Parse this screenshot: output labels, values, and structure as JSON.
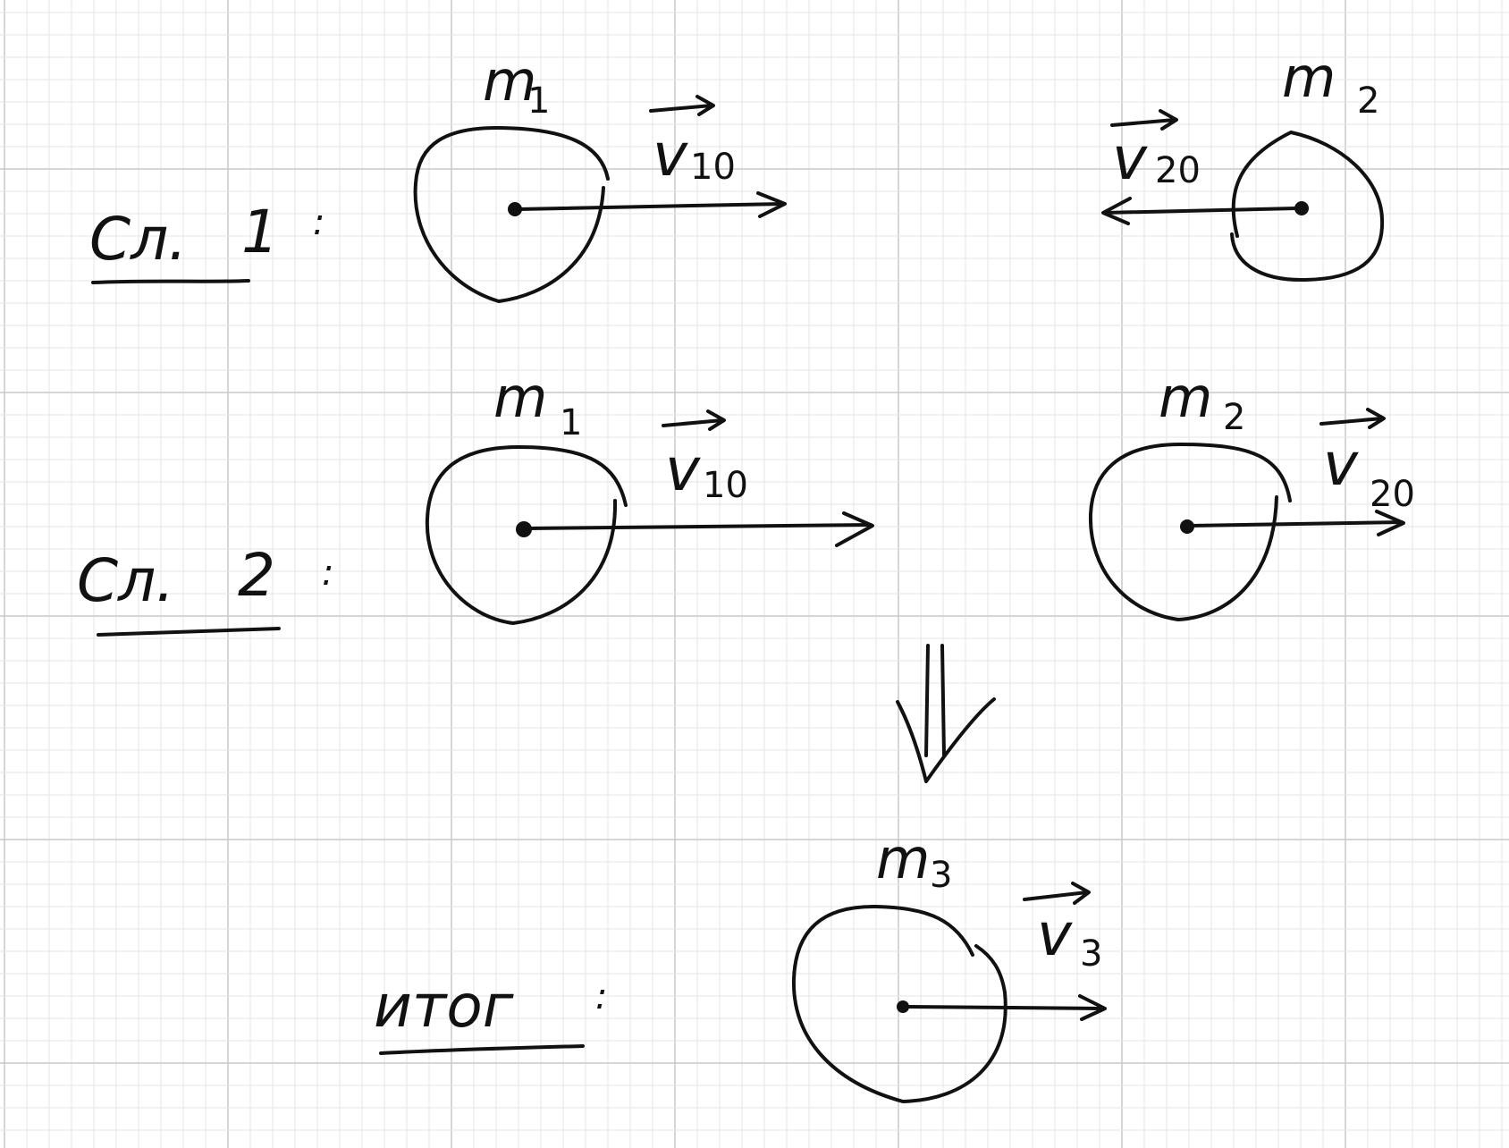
{
  "colors": {
    "paper": "#ffffff",
    "grid_fine": "#e6e6e6",
    "grid_major": "#c9c9c9",
    "ink": "#111111"
  },
  "cases": [
    {
      "label": "Сл.",
      "number": "1",
      "colon": ":",
      "bodies": [
        {
          "mass_symbol": "m",
          "mass_index": "1",
          "velocity_symbol": "v",
          "velocity_index": "10",
          "direction": "right"
        },
        {
          "mass_symbol": "m",
          "mass_index": "2",
          "velocity_symbol": "v",
          "velocity_index": "20",
          "direction": "left"
        }
      ]
    },
    {
      "label": "Сл.",
      "number": "2",
      "colon": ":",
      "bodies": [
        {
          "mass_symbol": "m",
          "mass_index": "1",
          "velocity_symbol": "v",
          "velocity_index": "10",
          "direction": "right"
        },
        {
          "mass_symbol": "m",
          "mass_index": "2",
          "velocity_symbol": "v",
          "velocity_index": "20",
          "direction": "right"
        }
      ]
    }
  ],
  "implication_icon": "double-arrow-down-icon",
  "result": {
    "label": "итог",
    "colon": ":",
    "body": {
      "mass_symbol": "m",
      "mass_index": "3",
      "velocity_symbol": "v",
      "velocity_index": "3",
      "direction": "right"
    }
  }
}
